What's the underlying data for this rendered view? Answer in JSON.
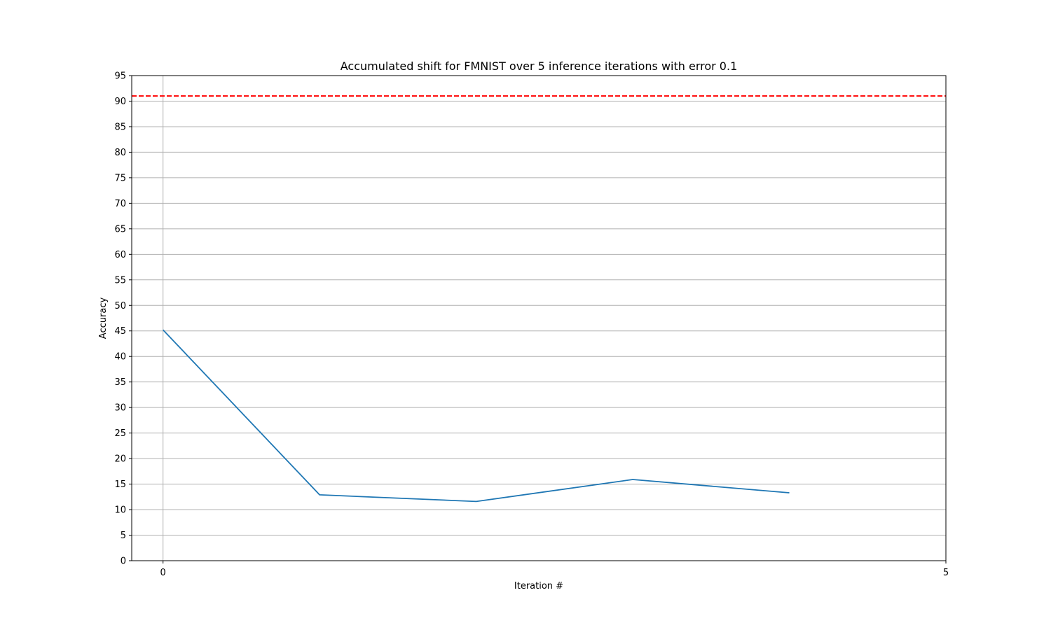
{
  "chart_data": {
    "type": "line",
    "title": "Accumulated shift for FMNIST over 5 inference iterations with error 0.1",
    "xlabel": "Iteration #",
    "ylabel": "Accuracy",
    "xlim": [
      -0.2,
      5
    ],
    "ylim": [
      0,
      95
    ],
    "xticks": [
      0,
      5
    ],
    "yticks": [
      0,
      5,
      10,
      15,
      20,
      25,
      30,
      35,
      40,
      45,
      50,
      55,
      60,
      65,
      70,
      75,
      80,
      85,
      90,
      95
    ],
    "grid": true,
    "series": [
      {
        "x": [
          0,
          1,
          2,
          3,
          4
        ],
        "values": [
          45.2,
          12.9,
          11.6,
          15.9,
          13.3
        ],
        "color": "#1f77b4",
        "style": "solid"
      }
    ],
    "reference_lines": [
      {
        "orientation": "horizontal",
        "y": 91,
        "color": "#ff0000",
        "style": "dashed"
      }
    ]
  }
}
